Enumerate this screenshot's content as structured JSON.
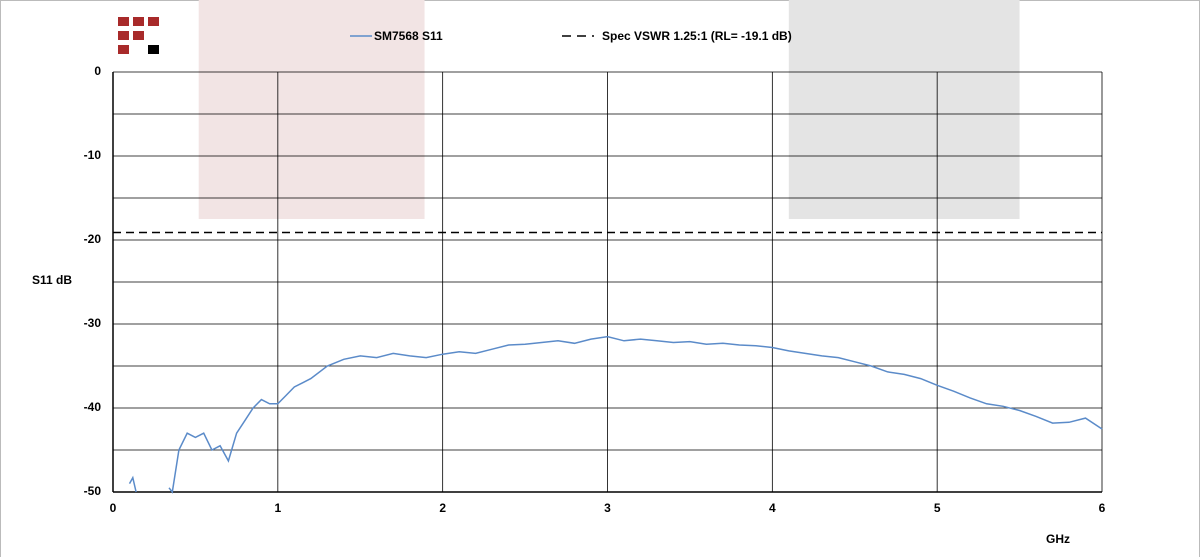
{
  "chart_data": {
    "type": "line",
    "y_label": "S11 dB",
    "x_label": "GHz",
    "x": [
      0.1,
      0.12,
      0.14,
      0.25,
      0.34,
      0.36,
      0.4,
      0.45,
      0.5,
      0.55,
      0.6,
      0.65,
      0.7,
      0.75,
      0.8,
      0.85,
      0.9,
      0.95,
      1.0,
      1.05,
      1.1,
      1.15,
      1.2,
      1.3,
      1.4,
      1.5,
      1.6,
      1.7,
      1.8,
      1.9,
      2.0,
      2.1,
      2.2,
      2.3,
      2.4,
      2.5,
      2.6,
      2.7,
      2.8,
      2.9,
      3.0,
      3.1,
      3.2,
      3.3,
      3.4,
      3.5,
      3.6,
      3.7,
      3.8,
      3.9,
      4.0,
      4.1,
      4.2,
      4.3,
      4.4,
      4.5,
      4.6,
      4.7,
      4.8,
      4.9,
      5.0,
      5.1,
      5.2,
      5.3,
      5.4,
      5.5,
      5.6,
      5.7,
      5.8,
      5.9,
      6.0
    ],
    "series": [
      {
        "name": "SM7568 S11",
        "color": "#5b8bc9",
        "values": [
          -49,
          -48.3,
          -50,
          null,
          -49.5,
          -50,
          -45,
          -43,
          -43.5,
          -43,
          -45,
          -44.5,
          -46.3,
          -43,
          -41.5,
          -40,
          -39,
          -39.5,
          -39.5,
          -38.5,
          -37.5,
          -37,
          -36.5,
          -35,
          -34.2,
          -33.8,
          -34,
          -33.5,
          -33.8,
          -34,
          -33.6,
          -33.3,
          -33.5,
          -33,
          -32.5,
          -32.4,
          -32.2,
          -32,
          -32.3,
          -31.8,
          -31.5,
          -32,
          -31.8,
          -32,
          -32.2,
          -32.1,
          -32.4,
          -32.3,
          -32.5,
          -32.6,
          -32.8,
          -33.2,
          -33.5,
          -33.8,
          -34,
          -34.5,
          -35,
          -35.7,
          -36,
          -36.5,
          -37.3,
          -38,
          -38.8,
          -39.5,
          -39.8,
          -40.3,
          -41,
          -41.8,
          -41.7,
          -41.2,
          -42.5
        ]
      }
    ],
    "reference_lines": [
      {
        "name": "Spec VSWR 1.25:1 (RL= -19.1 dB)",
        "value": -19.1,
        "color": "#000000",
        "style": "dashed"
      }
    ],
    "bands": [
      {
        "x": [
          0.52,
          1.89
        ],
        "y": [
          0,
          -17.5
        ],
        "color": "#f2e4e4"
      },
      {
        "x": [
          4.1,
          5.5
        ],
        "y": [
          0,
          -17.5
        ],
        "color": "#e4e4e4"
      }
    ],
    "xlim": [
      0,
      6
    ],
    "xticks": [
      0,
      1,
      2,
      3,
      4,
      5,
      6
    ],
    "ylim": [
      -50,
      0
    ],
    "yticks": [
      0,
      -10,
      -20,
      -30,
      -40,
      -50
    ],
    "grid": true
  }
}
